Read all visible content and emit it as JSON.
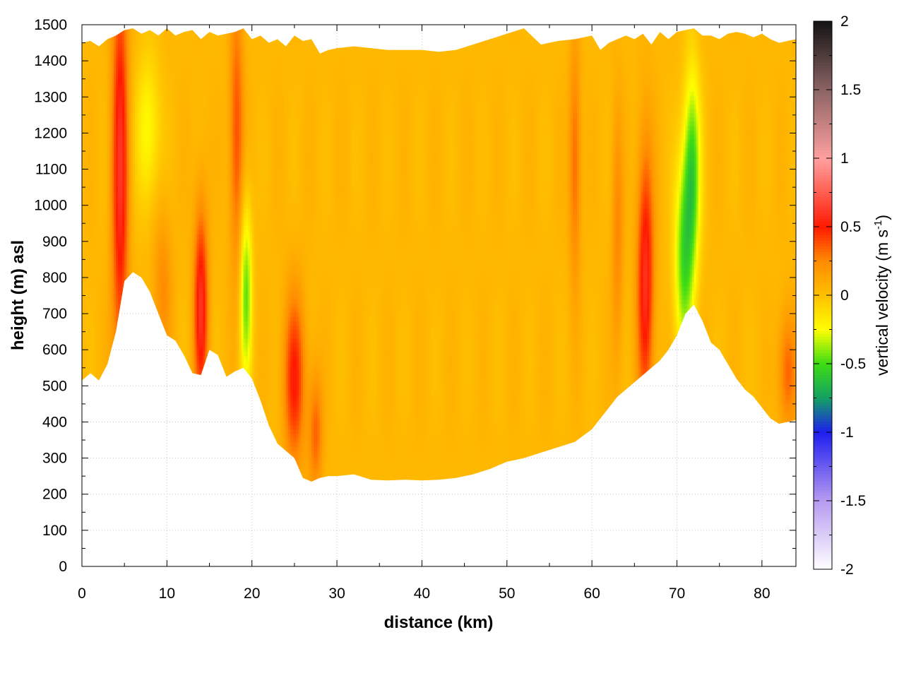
{
  "chart_data": {
    "type": "heatmap",
    "title": "",
    "xlabel": "distance (km)",
    "ylabel": "height (m) asl",
    "colorbar_label": "vertical velocity (m s",
    "colorbar_label_exp": "-1",
    "colorbar_label_close": ")",
    "xlim": [
      0,
      84
    ],
    "ylim": [
      0,
      1500
    ],
    "clim": [
      -2,
      2
    ],
    "grid": true,
    "x_ticks": [
      "0",
      "10",
      "20",
      "30",
      "40",
      "50",
      "60",
      "70",
      "80"
    ],
    "y_ticks": [
      "0",
      "100",
      "200",
      "300",
      "400",
      "500",
      "600",
      "700",
      "800",
      "900",
      "1000",
      "1100",
      "1200",
      "1300",
      "1400",
      "1500"
    ],
    "colorbar_ticks": [
      "2",
      "1.5",
      "1",
      "0.5",
      "0",
      "-0.5",
      "-1",
      "-1.5",
      "-2"
    ],
    "colormap": [
      [
        -2.0,
        "#ffffff"
      ],
      [
        -1.5,
        "#b79bf0"
      ],
      [
        -1.0,
        "#1e1ef0"
      ],
      [
        -0.75,
        "#14a064"
      ],
      [
        -0.5,
        "#3cdc14"
      ],
      [
        -0.25,
        "#ffff00"
      ],
      [
        0.0,
        "#ffc000"
      ],
      [
        0.25,
        "#ff8c00"
      ],
      [
        0.5,
        "#ff1a00"
      ],
      [
        1.0,
        "#ffa0a0"
      ],
      [
        1.5,
        "#8c6464"
      ],
      [
        2.0,
        "#141414"
      ]
    ],
    "background_value": 0.04,
    "terrain_height_m": {
      "x": [
        0,
        1,
        2,
        3,
        4,
        5,
        6,
        7,
        8,
        9,
        10,
        11,
        12,
        13,
        14,
        15,
        16,
        17,
        18,
        19,
        20,
        21,
        22,
        23,
        24,
        25,
        26,
        27,
        28,
        29,
        30,
        32,
        34,
        36,
        38,
        40,
        42,
        44,
        46,
        48,
        50,
        52,
        54,
        56,
        58,
        60,
        61,
        62,
        63,
        64,
        65,
        66,
        67,
        68,
        69,
        70,
        71,
        72,
        73,
        74,
        75,
        76,
        77,
        78,
        79,
        80,
        81,
        82,
        83,
        84
      ],
      "y": [
        515,
        535,
        515,
        560,
        650,
        790,
        815,
        800,
        760,
        700,
        640,
        625,
        585,
        535,
        530,
        600,
        585,
        525,
        540,
        550,
        520,
        460,
        390,
        340,
        320,
        300,
        245,
        235,
        245,
        250,
        250,
        255,
        240,
        238,
        240,
        238,
        240,
        245,
        255,
        270,
        290,
        300,
        315,
        330,
        345,
        380,
        410,
        440,
        470,
        490,
        510,
        530,
        550,
        570,
        600,
        640,
        700,
        725,
        680,
        620,
        600,
        560,
        520,
        490,
        470,
        440,
        410,
        395,
        400,
        405
      ]
    },
    "data_top_height_m": {
      "x": [
        0,
        1,
        2,
        3,
        4,
        5,
        6,
        7,
        8,
        9,
        10,
        11,
        12,
        13,
        14,
        15,
        16,
        17,
        18,
        19,
        20,
        21,
        22,
        23,
        24,
        25,
        26,
        27,
        28,
        29,
        30,
        32,
        34,
        36,
        38,
        40,
        42,
        44,
        46,
        48,
        50,
        52,
        54,
        56,
        58,
        60,
        61,
        62,
        63,
        64,
        65,
        66,
        67,
        68,
        69,
        70,
        71,
        72,
        73,
        74,
        75,
        76,
        77,
        78,
        79,
        80,
        81,
        82,
        83,
        84
      ],
      "y": [
        1450,
        1455,
        1440,
        1460,
        1470,
        1485,
        1490,
        1475,
        1485,
        1470,
        1490,
        1470,
        1480,
        1485,
        1460,
        1480,
        1470,
        1475,
        1480,
        1490,
        1460,
        1470,
        1450,
        1460,
        1440,
        1470,
        1455,
        1460,
        1420,
        1430,
        1435,
        1440,
        1435,
        1430,
        1430,
        1430,
        1425,
        1430,
        1445,
        1460,
        1475,
        1490,
        1445,
        1455,
        1460,
        1470,
        1430,
        1450,
        1460,
        1470,
        1460,
        1475,
        1445,
        1480,
        1460,
        1480,
        1485,
        1490,
        1470,
        1470,
        1460,
        1475,
        1480,
        1475,
        1465,
        1475,
        1460,
        1450,
        1455,
        1460
      ]
    },
    "velocity_features": [
      {
        "x_km": 4.5,
        "z_m": 1100,
        "sx_km": 0.7,
        "sz_m": 420,
        "w": 0.55
      },
      {
        "x_km": 7.8,
        "z_m": 1210,
        "sx_km": 1.0,
        "sz_m": 150,
        "w": -0.28
      },
      {
        "x_km": 9.5,
        "z_m": 780,
        "sx_km": 0.8,
        "sz_m": 150,
        "w": 0.2
      },
      {
        "x_km": 14.0,
        "z_m": 720,
        "sx_km": 0.6,
        "sz_m": 200,
        "w": 0.55
      },
      {
        "x_km": 18.2,
        "z_m": 1200,
        "sx_km": 0.6,
        "sz_m": 280,
        "w": 0.35
      },
      {
        "x_km": 19.3,
        "z_m": 760,
        "sx_km": 0.5,
        "sz_m": 180,
        "w": -0.5
      },
      {
        "x_km": 25.0,
        "z_m": 520,
        "sx_km": 0.9,
        "sz_m": 170,
        "w": 0.45
      },
      {
        "x_km": 27.5,
        "z_m": 370,
        "sx_km": 0.6,
        "sz_m": 120,
        "w": 0.3
      },
      {
        "x_km": 58.0,
        "z_m": 1120,
        "sx_km": 0.5,
        "sz_m": 240,
        "w": 0.3
      },
      {
        "x_km": 63.0,
        "z_m": 920,
        "sx_km": 0.5,
        "sz_m": 250,
        "w": 0.22
      },
      {
        "x_km": 66.3,
        "z_m": 800,
        "sx_km": 0.7,
        "sz_m": 260,
        "w": 0.55
      },
      {
        "x_km": 71.8,
        "z_m": 1100,
        "sx_km": 0.7,
        "sz_m": 200,
        "w": -0.55
      },
      {
        "x_km": 70.8,
        "z_m": 850,
        "sx_km": 0.8,
        "sz_m": 200,
        "w": -0.5
      },
      {
        "x_km": 83.0,
        "z_m": 540,
        "sx_km": 0.8,
        "sz_m": 120,
        "w": 0.3
      }
    ]
  }
}
